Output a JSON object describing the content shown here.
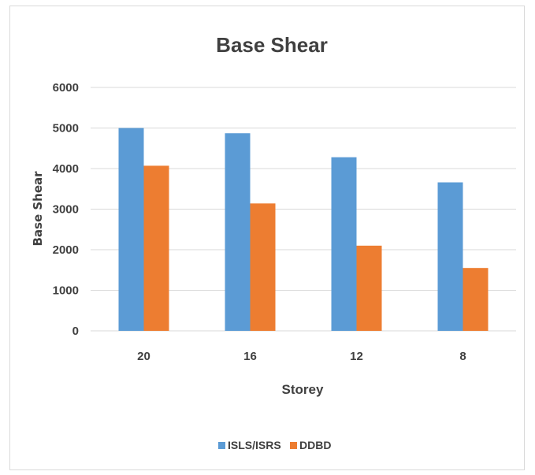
{
  "chart_data": {
    "type": "bar",
    "title": "Base Shear",
    "xlabel": "Storey",
    "ylabel": "Base Shear",
    "categories": [
      "20",
      "16",
      "12",
      "8"
    ],
    "series": [
      {
        "name": "ISLS/ISRS",
        "color": "#5b9bd5",
        "values": [
          5000,
          4870,
          4280,
          3660
        ]
      },
      {
        "name": "DDBD",
        "color": "#ed7d31",
        "values": [
          4070,
          3140,
          2100,
          1550
        ]
      }
    ],
    "ylim": [
      0,
      6000
    ],
    "yticks": [
      "0",
      "1000",
      "2000",
      "3000",
      "4000",
      "5000",
      "6000"
    ],
    "grid": true,
    "legend_position": "bottom"
  }
}
